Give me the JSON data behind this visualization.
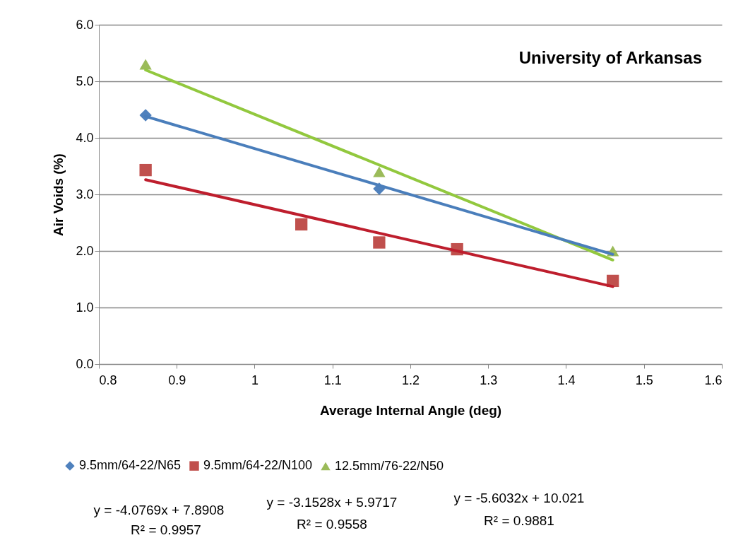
{
  "chart_data": {
    "type": "scatter",
    "title": "University of Arkansas",
    "xlabel": "Average Internal Angle (deg)",
    "ylabel": "Air Voids (%)",
    "xlim": [
      0.8,
      1.6
    ],
    "xticks": [
      0.8,
      0.9,
      1,
      1.1,
      1.2,
      1.3,
      1.4,
      1.5,
      1.6
    ],
    "ylim": [
      0,
      6
    ],
    "yticks": [
      {
        "value": 0,
        "label": "0.0"
      },
      {
        "value": 1,
        "label": "1.0"
      },
      {
        "value": 2,
        "label": "2.0"
      },
      {
        "value": 3,
        "label": "3.0"
      },
      {
        "value": 4,
        "label": "4.0"
      },
      {
        "value": 5,
        "label": "5.0"
      },
      {
        "value": 6,
        "label": "6.0"
      }
    ],
    "grid": "y",
    "legend": "bottom",
    "series": [
      {
        "name": "9.5mm/64-22/N65",
        "color": "#4f81bd",
        "marker": "diamond",
        "x": [
          0.86,
          1.16
        ],
        "values": [
          4.4,
          3.1
        ]
      },
      {
        "name": "9.5mm/64-22/N100",
        "color": "#c0504d",
        "marker": "square",
        "x": [
          0.86,
          1.06,
          1.16,
          1.26,
          1.46
        ],
        "values": [
          3.43,
          2.47,
          2.15,
          2.03,
          1.47
        ]
      },
      {
        "name": "12.5mm/76-22/N50",
        "color": "#9bbb59",
        "marker": "triangle",
        "x": [
          0.86,
          1.16,
          1.46
        ],
        "values": [
          5.3,
          3.4,
          2.0
        ]
      },
      {
        "type": "line",
        "color": "#92c83e",
        "x": [
          0.86,
          1.46
        ],
        "values": [
          5.2,
          1.84
        ]
      },
      {
        "type": "line",
        "color": "#be1e2d",
        "x": [
          0.86,
          1.46
        ],
        "values": [
          3.26,
          1.37
        ]
      },
      {
        "type": "line",
        "color": "#4a7ebb",
        "x": [
          0.86,
          1.46
        ],
        "values": [
          4.38,
          1.94
        ]
      }
    ],
    "annotations": [
      "y = -4.0769x + 7.8908",
      "R² = 0.9957",
      "y = -3.1528x + 5.9717",
      "R² = 0.9558",
      "y = -5.6032x + 10.021",
      "R² = 0.9881"
    ]
  }
}
